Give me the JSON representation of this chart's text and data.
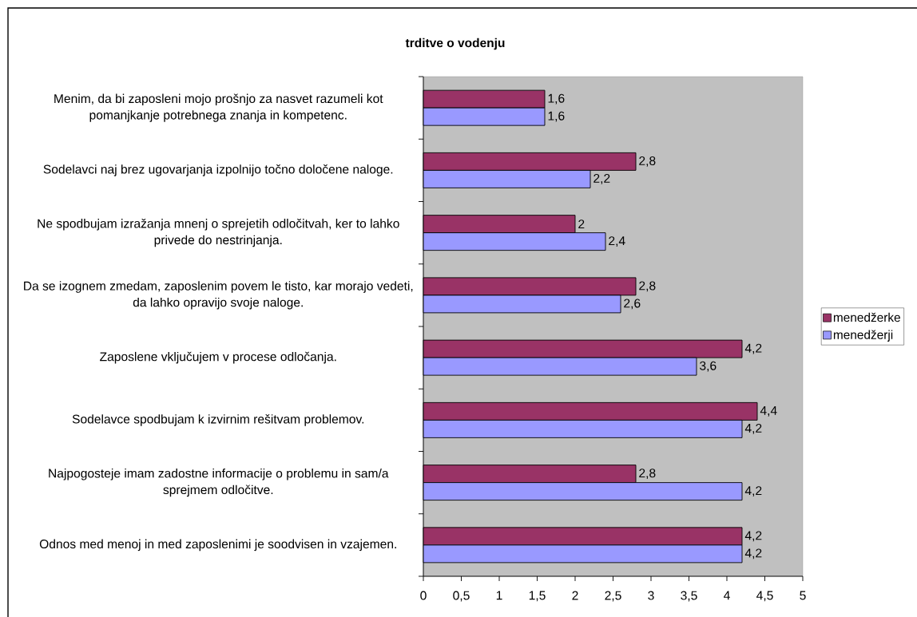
{
  "chart_data": {
    "type": "bar",
    "orientation": "horizontal",
    "title": "trditve o vodenju",
    "categories": [
      "Menim, da bi zaposleni mojo prošnjo za nasvet razumeli kot pomanjkanje potrebnega znanja in kompetenc.",
      "Sodelavci naj brez ugovarjanja izpolnijo točno določene naloge.",
      "Ne spodbujam izražanja mnenj o sprejetih odločitvah, ker to lahko privede do nestrinjanja.",
      "Da se izognem zmedam, zaposlenim povem le tisto, kar morajo vedeti, da lahko opravijo svoje naloge.",
      "Zaposlene vključujem v procese odločanja.",
      "Sodelavce spodbujam k izvirnim rešitvam problemov.",
      "Najpogosteje imam zadostne informacije o problemu in sam/a sprejmem odločitve.",
      "Odnos med menoj in med zaposlenimi je soodvisen in vzajemen."
    ],
    "series": [
      {
        "name": "menedžerke",
        "color": "#993366",
        "values": [
          1.6,
          2.8,
          2,
          2.8,
          4.2,
          4.4,
          2.8,
          4.2
        ],
        "value_labels": [
          "1,6",
          "2,8",
          "2",
          "2,8",
          "4,2",
          "4,4",
          "2,8",
          "4,2"
        ]
      },
      {
        "name": "menedžerji",
        "color": "#9999ff",
        "values": [
          1.6,
          2.2,
          2.4,
          2.6,
          3.6,
          4.2,
          4.2,
          4.2
        ],
        "value_labels": [
          "1,6",
          "2,2",
          "2,4",
          "2,6",
          "3,6",
          "4,2",
          "4,2",
          "4,2"
        ]
      }
    ],
    "xlim": [
      0,
      5
    ],
    "xticks": [
      0,
      {
        "value": 0.5,
        "label": "0,5"
      },
      1,
      {
        "value": 1.5,
        "label": "1,5"
      },
      2,
      {
        "value": 2.5,
        "label": "2,5"
      },
      3,
      {
        "value": 3.5,
        "label": "3,5"
      },
      4,
      {
        "value": 4.5,
        "label": "4,5"
      },
      5
    ],
    "legend": "right"
  }
}
